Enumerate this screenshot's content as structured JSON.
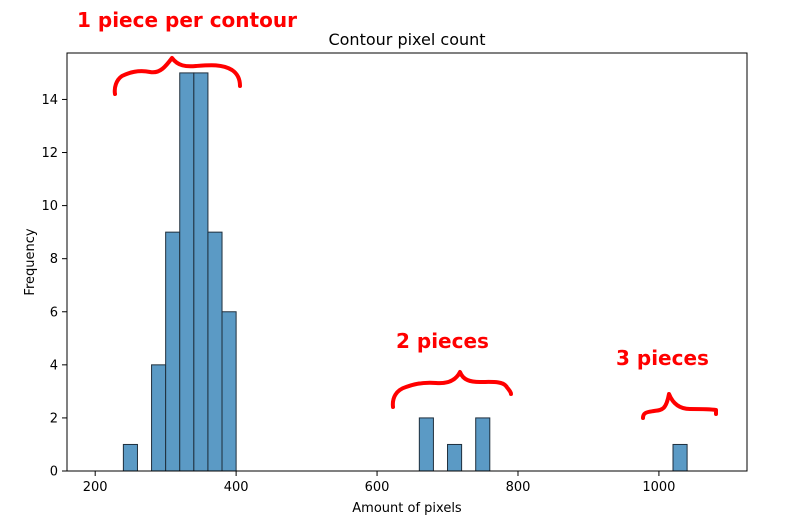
{
  "chart_data": {
    "type": "bar",
    "title": "Contour pixel count",
    "xlabel": "Amount of pixels",
    "ylabel": "Frequency",
    "xlim": [
      160,
      1125
    ],
    "ylim": [
      0,
      15.75
    ],
    "xticks": [
      200,
      400,
      600,
      800,
      1000
    ],
    "yticks": [
      0,
      2,
      4,
      6,
      8,
      10,
      12,
      14
    ],
    "bin_width": 20,
    "bins": [
      {
        "x": 240,
        "value": 1
      },
      {
        "x": 280,
        "value": 4
      },
      {
        "x": 300,
        "value": 9
      },
      {
        "x": 320,
        "value": 15
      },
      {
        "x": 340,
        "value": 15
      },
      {
        "x": 360,
        "value": 9
      },
      {
        "x": 380,
        "value": 6
      },
      {
        "x": 660,
        "value": 2
      },
      {
        "x": 700,
        "value": 1
      },
      {
        "x": 740,
        "value": 2
      },
      {
        "x": 1020,
        "value": 1
      }
    ],
    "bar_color": "#5b9ac5",
    "bar_edge_color": "#1f2f3d",
    "grid": false,
    "annotations": [
      {
        "text": "1 piece per contour",
        "color": "#ff0000"
      },
      {
        "text": "2 pieces",
        "color": "#ff0000"
      },
      {
        "text": "3 pieces",
        "color": "#ff0000"
      }
    ]
  }
}
